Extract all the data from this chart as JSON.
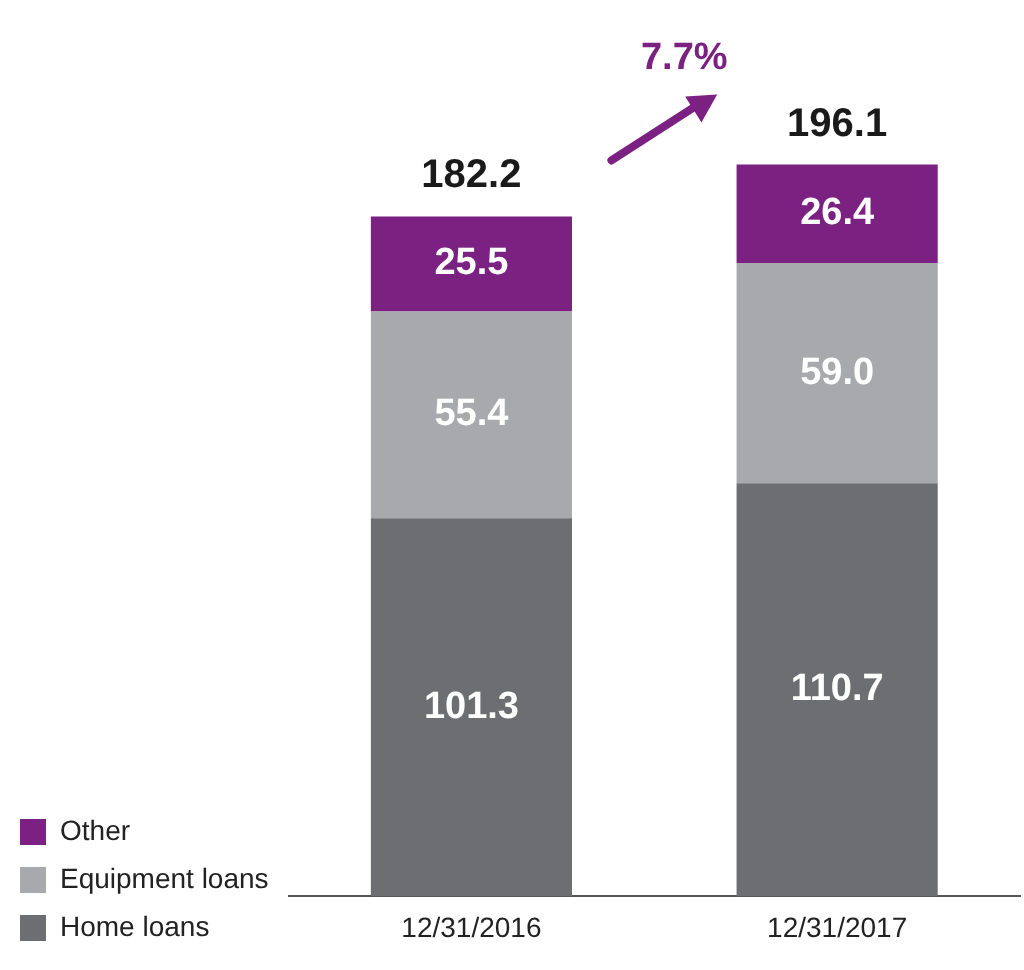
{
  "chart_data": {
    "type": "bar",
    "stacked": true,
    "categories": [
      "12/31/2016",
      "12/31/2017"
    ],
    "series": [
      {
        "name": "Home loans",
        "color": "#6d6e71",
        "values": [
          101.3,
          110.7
        ],
        "value_labels": [
          "101.3",
          "110.7"
        ]
      },
      {
        "name": "Equipment loans",
        "color": "#a7a9ac",
        "values": [
          55.4,
          59.0
        ],
        "value_labels": [
          "55.4",
          "59.0"
        ]
      },
      {
        "name": "Other",
        "color": "#7a2182",
        "values": [
          25.5,
          26.4
        ],
        "value_labels": [
          "25.5",
          "26.4"
        ]
      }
    ],
    "totals": [
      "182.2",
      "196.1"
    ],
    "annotations": [
      "7.7%"
    ],
    "grid": false,
    "legend": "bottom left"
  }
}
